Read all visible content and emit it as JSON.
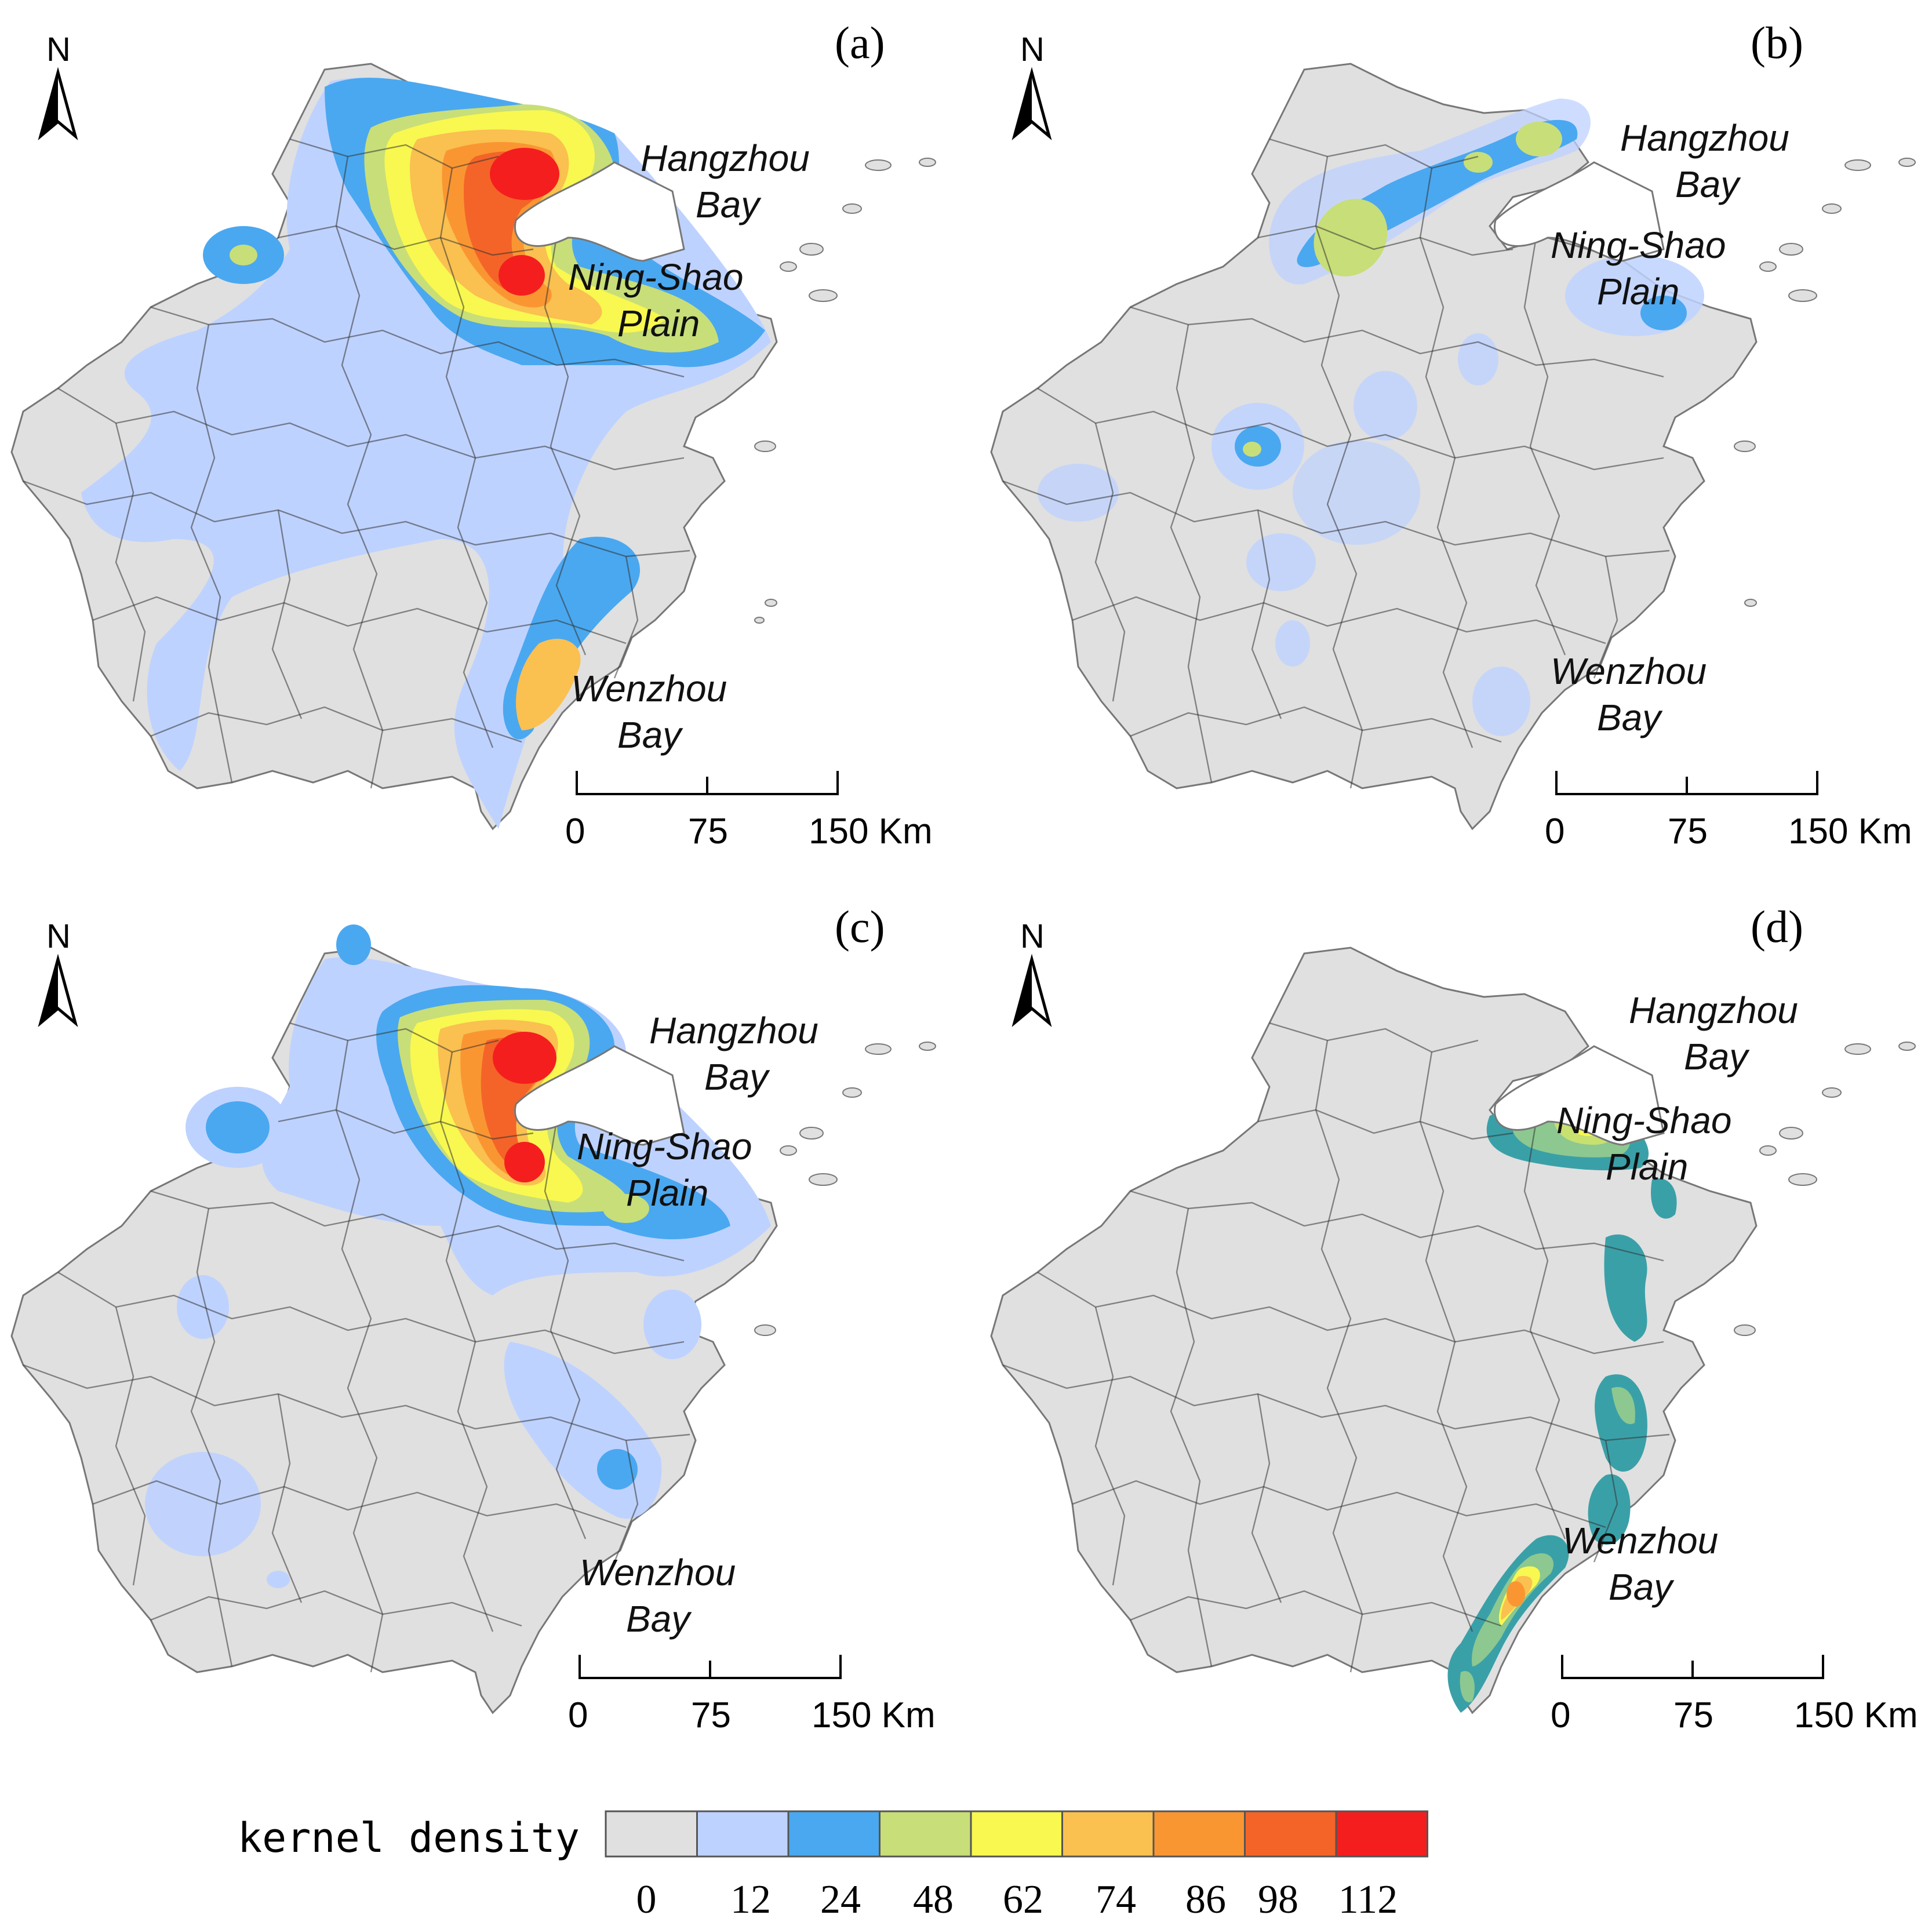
{
  "panels": [
    {
      "id": "a",
      "label": "(a)",
      "places": [
        "Hangzhou",
        "Bay",
        "Ning-Shao",
        "Plain",
        "Wenzhou",
        "Bay"
      ]
    },
    {
      "id": "b",
      "label": "(b)",
      "places": [
        "Hangzhou",
        "Bay",
        "Ning-Shao",
        "Plain",
        "Wenzhou",
        "Bay"
      ]
    },
    {
      "id": "c",
      "label": "(c)",
      "places": [
        "Hangzhou",
        "Bay",
        "Ning-Shao",
        "Plain",
        "Wenzhou",
        "Bay"
      ]
    },
    {
      "id": "d",
      "label": "(d)",
      "places": [
        "Hangzhou",
        "Bay",
        "Ning-Shao",
        "Plain",
        "Wenzhou",
        "Bay"
      ]
    }
  ],
  "north_label": "N",
  "scale_bar": {
    "labels": [
      "0",
      "75",
      "150 Km"
    ]
  },
  "legend": {
    "title": "kernel density",
    "ticks": [
      "0",
      "12",
      "24",
      "48",
      "62",
      "74",
      "86",
      "98",
      "112"
    ],
    "colors": [
      "#e0e0e0",
      "#bed2ff",
      "#4aa8f0",
      "#c8de78",
      "#f8f850",
      "#fac050",
      "#fa9632",
      "#f46428",
      "#f51e1e"
    ]
  },
  "panel_d_colors": [
    "#3aa0a8",
    "#8cc890",
    "#c8e070",
    "#f8f850",
    "#fac050",
    "#fa9632"
  ]
}
